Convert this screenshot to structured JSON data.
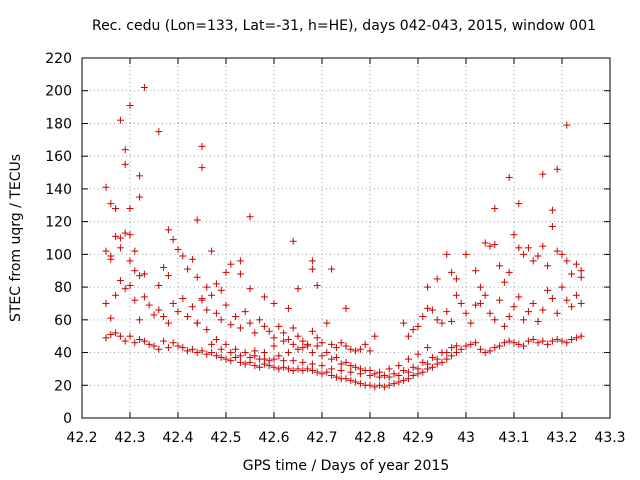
{
  "chart_data": {
    "type": "scatter",
    "title": "Rec. cedu (Lon=133, Lat=-31, h=HE), days 042-043, 2015, window 001",
    "xlabel": "GPS time / Days of year 2015",
    "ylabel": "STEC from uqrg / TECUs",
    "xlim": [
      42.2,
      43.3
    ],
    "ylim": [
      0,
      220
    ],
    "xticks": [
      "42.2",
      "42.3",
      "42.4",
      "42.5",
      "42.6",
      "42.7",
      "42.8",
      "42.9",
      "43",
      "43.1",
      "43.2",
      "43.3"
    ],
    "yticks": [
      "0",
      "20",
      "40",
      "60",
      "80",
      "100",
      "120",
      "140",
      "160",
      "180",
      "200",
      "220"
    ],
    "grid": true,
    "marker": "+",
    "color": "#cc0000",
    "points": [
      [
        42.25,
        141
      ],
      [
        42.26,
        131
      ],
      [
        42.27,
        128
      ],
      [
        42.28,
        182
      ],
      [
        42.29,
        155
      ],
      [
        42.29,
        164
      ],
      [
        42.3,
        191
      ],
      [
        42.3,
        128
      ],
      [
        42.32,
        148
      ],
      [
        42.32,
        135
      ],
      [
        42.33,
        202
      ],
      [
        42.36,
        175
      ],
      [
        42.38,
        115
      ],
      [
        42.39,
        109
      ],
      [
        42.44,
        121
      ],
      [
        42.45,
        166
      ],
      [
        42.45,
        153
      ],
      [
        42.55,
        123
      ],
      [
        42.64,
        108
      ],
      [
        43.06,
        128
      ],
      [
        43.09,
        147
      ],
      [
        43.11,
        131
      ],
      [
        43.16,
        149
      ],
      [
        43.18,
        127
      ],
      [
        43.19,
        152
      ],
      [
        43.21,
        179
      ],
      [
        42.25,
        102
      ],
      [
        42.26,
        97
      ],
      [
        42.26,
        99
      ],
      [
        42.27,
        111
      ],
      [
        42.28,
        110
      ],
      [
        42.28,
        104
      ],
      [
        42.29,
        113
      ],
      [
        42.3,
        112
      ],
      [
        42.3,
        96
      ],
      [
        42.31,
        102
      ],
      [
        42.31,
        90
      ],
      [
        42.32,
        87
      ],
      [
        42.33,
        88
      ],
      [
        42.36,
        81
      ],
      [
        42.37,
        92
      ],
      [
        42.38,
        87
      ],
      [
        42.4,
        103
      ],
      [
        42.41,
        99
      ],
      [
        42.42,
        91
      ],
      [
        42.43,
        97
      ],
      [
        42.44,
        86
      ],
      [
        42.45,
        73
      ],
      [
        42.46,
        80
      ],
      [
        42.47,
        102
      ],
      [
        42.48,
        82
      ],
      [
        42.49,
        78
      ],
      [
        42.5,
        89
      ],
      [
        42.51,
        94
      ],
      [
        42.53,
        96
      ],
      [
        42.53,
        88
      ],
      [
        42.55,
        79
      ],
      [
        42.58,
        74
      ],
      [
        42.6,
        70
      ],
      [
        42.63,
        67
      ],
      [
        42.65,
        79
      ],
      [
        42.68,
        96
      ],
      [
        42.68,
        91
      ],
      [
        42.69,
        81
      ],
      [
        42.72,
        91
      ],
      [
        42.75,
        67
      ],
      [
        42.92,
        80
      ],
      [
        42.94,
        85
      ],
      [
        42.96,
        100
      ],
      [
        42.97,
        89
      ],
      [
        42.98,
        85
      ],
      [
        43.0,
        100
      ],
      [
        43.02,
        90
      ],
      [
        43.03,
        80
      ],
      [
        43.04,
        107
      ],
      [
        43.05,
        105
      ],
      [
        43.06,
        106
      ],
      [
        43.07,
        93
      ],
      [
        43.08,
        83
      ],
      [
        43.09,
        89
      ],
      [
        43.1,
        112
      ],
      [
        43.11,
        104
      ],
      [
        43.12,
        100
      ],
      [
        43.13,
        104
      ],
      [
        43.14,
        96
      ],
      [
        43.15,
        99
      ],
      [
        43.16,
        105
      ],
      [
        43.17,
        93
      ],
      [
        43.18,
        117
      ],
      [
        43.19,
        102
      ],
      [
        43.2,
        100
      ],
      [
        43.21,
        96
      ],
      [
        43.22,
        88
      ],
      [
        43.23,
        94
      ],
      [
        43.24,
        90
      ],
      [
        43.24,
        86
      ],
      [
        42.25,
        70
      ],
      [
        42.26,
        61
      ],
      [
        42.27,
        75
      ],
      [
        42.28,
        84
      ],
      [
        42.29,
        79
      ],
      [
        42.3,
        81
      ],
      [
        42.31,
        72
      ],
      [
        42.32,
        60
      ],
      [
        42.33,
        74
      ],
      [
        42.34,
        69
      ],
      [
        42.35,
        63
      ],
      [
        42.36,
        66
      ],
      [
        42.37,
        62
      ],
      [
        42.38,
        58
      ],
      [
        42.39,
        70
      ],
      [
        42.4,
        65
      ],
      [
        42.41,
        73
      ],
      [
        42.42,
        62
      ],
      [
        42.43,
        68
      ],
      [
        42.44,
        58
      ],
      [
        42.45,
        72
      ],
      [
        42.46,
        66
      ],
      [
        42.47,
        75
      ],
      [
        42.48,
        64
      ],
      [
        42.49,
        60
      ],
      [
        42.5,
        69
      ],
      [
        42.51,
        57
      ],
      [
        42.52,
        62
      ],
      [
        42.53,
        55
      ],
      [
        42.54,
        65
      ],
      [
        42.55,
        58
      ],
      [
        42.56,
        52
      ],
      [
        42.57,
        60
      ],
      [
        42.58,
        56
      ],
      [
        42.59,
        53
      ],
      [
        42.6,
        49
      ],
      [
        42.61,
        56
      ],
      [
        42.62,
        52
      ],
      [
        42.63,
        48
      ],
      [
        42.64,
        55
      ],
      [
        42.65,
        50
      ],
      [
        42.66,
        47
      ],
      [
        42.67,
        44
      ],
      [
        42.68,
        53
      ],
      [
        42.69,
        49
      ],
      [
        42.7,
        46
      ],
      [
        42.71,
        58
      ],
      [
        42.72,
        45
      ],
      [
        42.73,
        43
      ],
      [
        42.74,
        46
      ],
      [
        42.75,
        44
      ],
      [
        42.76,
        42
      ],
      [
        42.77,
        41
      ],
      [
        42.78,
        42
      ],
      [
        42.79,
        45
      ],
      [
        42.8,
        41
      ],
      [
        42.81,
        50
      ],
      [
        42.87,
        58
      ],
      [
        42.88,
        50
      ],
      [
        42.89,
        54
      ],
      [
        42.9,
        56
      ],
      [
        42.91,
        62
      ],
      [
        42.92,
        67
      ],
      [
        42.93,
        66
      ],
      [
        42.94,
        60
      ],
      [
        42.95,
        58
      ],
      [
        42.96,
        65
      ],
      [
        42.97,
        59
      ],
      [
        42.98,
        75
      ],
      [
        42.99,
        70
      ],
      [
        43.0,
        64
      ],
      [
        43.01,
        58
      ],
      [
        43.02,
        69
      ],
      [
        43.03,
        70
      ],
      [
        43.04,
        75
      ],
      [
        43.05,
        64
      ],
      [
        43.06,
        60
      ],
      [
        43.07,
        72
      ],
      [
        43.08,
        56
      ],
      [
        43.09,
        62
      ],
      [
        43.1,
        68
      ],
      [
        43.11,
        74
      ],
      [
        43.12,
        60
      ],
      [
        43.13,
        65
      ],
      [
        43.14,
        70
      ],
      [
        43.15,
        59
      ],
      [
        43.16,
        66
      ],
      [
        43.17,
        78
      ],
      [
        43.18,
        73
      ],
      [
        43.19,
        64
      ],
      [
        43.2,
        80
      ],
      [
        43.21,
        72
      ],
      [
        43.22,
        68
      ],
      [
        43.23,
        75
      ],
      [
        43.24,
        70
      ],
      [
        42.25,
        49
      ],
      [
        42.26,
        51
      ],
      [
        42.27,
        52
      ],
      [
        42.28,
        50
      ],
      [
        42.29,
        47
      ],
      [
        42.3,
        50
      ],
      [
        42.31,
        46
      ],
      [
        42.32,
        48
      ],
      [
        42.33,
        47
      ],
      [
        42.34,
        45
      ],
      [
        42.35,
        44
      ],
      [
        42.36,
        42
      ],
      [
        42.37,
        47
      ],
      [
        42.38,
        43
      ],
      [
        42.39,
        46
      ],
      [
        42.4,
        44
      ],
      [
        42.41,
        43
      ],
      [
        42.42,
        41
      ],
      [
        42.43,
        42
      ],
      [
        42.44,
        40
      ],
      [
        42.45,
        41
      ],
      [
        42.46,
        39
      ],
      [
        42.47,
        40
      ],
      [
        42.48,
        38
      ],
      [
        42.49,
        37
      ],
      [
        42.5,
        36
      ],
      [
        42.51,
        35
      ],
      [
        42.52,
        37
      ],
      [
        42.53,
        34
      ],
      [
        42.54,
        33
      ],
      [
        42.55,
        34
      ],
      [
        42.56,
        32
      ],
      [
        42.57,
        31
      ],
      [
        42.58,
        33
      ],
      [
        42.59,
        32
      ],
      [
        42.6,
        31
      ],
      [
        42.61,
        30
      ],
      [
        42.62,
        31
      ],
      [
        42.63,
        30
      ],
      [
        42.64,
        29
      ],
      [
        42.65,
        30
      ],
      [
        42.66,
        29
      ],
      [
        42.67,
        30
      ],
      [
        42.68,
        29
      ],
      [
        42.69,
        28
      ],
      [
        42.7,
        27
      ],
      [
        42.71,
        28
      ],
      [
        42.72,
        26
      ],
      [
        42.73,
        25
      ],
      [
        42.74,
        24
      ],
      [
        42.75,
        24
      ],
      [
        42.76,
        23
      ],
      [
        42.77,
        22
      ],
      [
        42.78,
        21
      ],
      [
        42.79,
        20
      ],
      [
        42.8,
        20
      ],
      [
        42.81,
        19
      ],
      [
        42.82,
        20
      ],
      [
        42.83,
        19
      ],
      [
        42.84,
        20
      ],
      [
        42.85,
        21
      ],
      [
        42.86,
        22
      ],
      [
        42.87,
        23
      ],
      [
        42.88,
        24
      ],
      [
        42.89,
        26
      ],
      [
        42.9,
        27
      ],
      [
        42.91,
        28
      ],
      [
        42.92,
        30
      ],
      [
        42.93,
        31
      ],
      [
        42.94,
        33
      ],
      [
        42.95,
        34
      ],
      [
        42.96,
        36
      ],
      [
        42.97,
        38
      ],
      [
        42.98,
        40
      ],
      [
        42.99,
        42
      ],
      [
        43.0,
        44
      ],
      [
        43.01,
        45
      ],
      [
        43.02,
        46
      ],
      [
        43.03,
        42
      ],
      [
        43.04,
        40
      ],
      [
        43.05,
        41
      ],
      [
        43.06,
        43
      ],
      [
        43.07,
        44
      ],
      [
        43.08,
        46
      ],
      [
        43.09,
        47
      ],
      [
        43.1,
        46
      ],
      [
        43.11,
        45
      ],
      [
        43.12,
        44
      ],
      [
        43.13,
        47
      ],
      [
        43.14,
        48
      ],
      [
        43.15,
        46
      ],
      [
        43.16,
        47
      ],
      [
        43.17,
        45
      ],
      [
        43.18,
        47
      ],
      [
        43.19,
        48
      ],
      [
        43.2,
        47
      ],
      [
        43.21,
        46
      ],
      [
        43.22,
        48
      ],
      [
        43.23,
        49
      ],
      [
        43.24,
        50
      ],
      [
        42.44,
        58
      ],
      [
        42.46,
        54
      ],
      [
        42.48,
        48
      ],
      [
        42.5,
        45
      ],
      [
        42.52,
        42
      ],
      [
        42.54,
        40
      ],
      [
        42.56,
        38
      ],
      [
        42.58,
        36
      ],
      [
        42.6,
        36
      ],
      [
        42.62,
        35
      ],
      [
        42.64,
        35
      ],
      [
        42.66,
        34
      ],
      [
        42.68,
        33
      ],
      [
        42.7,
        32
      ],
      [
        42.72,
        30
      ],
      [
        42.74,
        29
      ],
      [
        42.76,
        28
      ],
      [
        42.78,
        27
      ],
      [
        42.8,
        26
      ],
      [
        42.82,
        25
      ],
      [
        42.84,
        25
      ],
      [
        42.86,
        26
      ],
      [
        42.88,
        28
      ],
      [
        42.9,
        30
      ],
      [
        42.92,
        33
      ],
      [
        42.94,
        36
      ],
      [
        42.96,
        40
      ],
      [
        42.98,
        44
      ],
      [
        42.47,
        45
      ],
      [
        42.49,
        42
      ],
      [
        42.51,
        40
      ],
      [
        42.53,
        38
      ],
      [
        42.55,
        37
      ],
      [
        42.57,
        36
      ],
      [
        42.59,
        35
      ],
      [
        42.61,
        38
      ],
      [
        42.63,
        40
      ],
      [
        42.65,
        42
      ],
      [
        42.67,
        45
      ],
      [
        42.69,
        44
      ],
      [
        42.71,
        40
      ],
      [
        42.73,
        37
      ],
      [
        42.75,
        34
      ],
      [
        42.77,
        31
      ],
      [
        42.79,
        29
      ],
      [
        42.81,
        27
      ],
      [
        42.83,
        26
      ],
      [
        42.85,
        27
      ],
      [
        42.87,
        29
      ],
      [
        42.89,
        31
      ],
      [
        42.91,
        34
      ],
      [
        42.93,
        37
      ],
      [
        42.95,
        40
      ],
      [
        42.97,
        43
      ],
      [
        42.56,
        41
      ],
      [
        42.58,
        40
      ],
      [
        42.6,
        44
      ],
      [
        42.62,
        47
      ],
      [
        42.64,
        45
      ],
      [
        42.66,
        43
      ],
      [
        42.68,
        40
      ],
      [
        42.7,
        38
      ],
      [
        42.72,
        36
      ],
      [
        42.74,
        33
      ],
      [
        42.76,
        32
      ],
      [
        42.78,
        30
      ],
      [
        42.8,
        29
      ],
      [
        42.82,
        28
      ],
      [
        42.84,
        30
      ],
      [
        42.86,
        32
      ],
      [
        42.88,
        36
      ],
      [
        42.9,
        39
      ],
      [
        42.92,
        43
      ]
    ]
  }
}
